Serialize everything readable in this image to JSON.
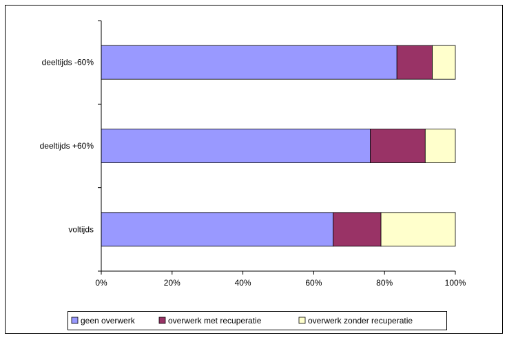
{
  "chart_data": {
    "type": "bar",
    "orientation": "horizontal",
    "stacked": "percent",
    "categories": [
      "deeltijds -60%",
      "deeltijds +60%",
      "voltijds"
    ],
    "series": [
      {
        "name": "geen overwerk",
        "color": "#9999ff",
        "values": [
          83.5,
          76,
          65.5
        ]
      },
      {
        "name": "overwerk met recuperatie",
        "color": "#993366",
        "values": [
          10,
          15.5,
          13.5
        ]
      },
      {
        "name": "overwerk zonder recuperatie",
        "color": "#ffffcc",
        "values": [
          6.5,
          8.5,
          21
        ]
      }
    ],
    "xlim": [
      0,
      100
    ],
    "x_ticks": [
      "0%",
      "20%",
      "40%",
      "60%",
      "80%",
      "100%"
    ],
    "grid": false,
    "legend_position": "bottom"
  }
}
